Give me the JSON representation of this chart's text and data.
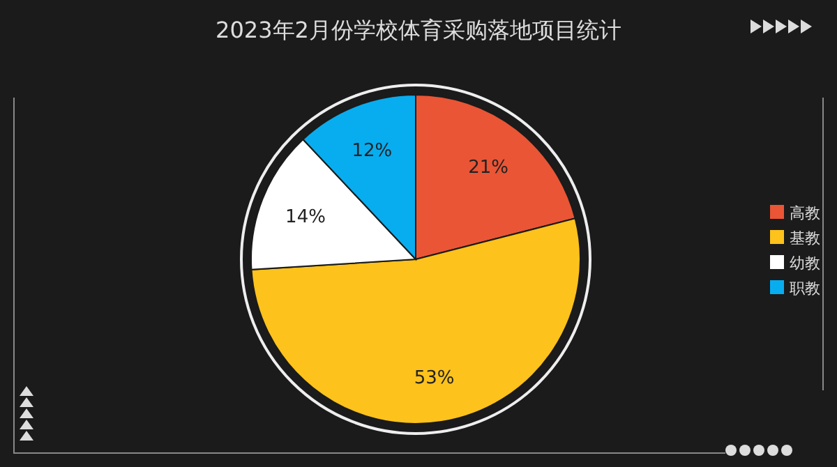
{
  "chart_data": {
    "type": "pie",
    "title": "2023年2月份学校体育采购落地项目统计",
    "categories": [
      "高教",
      "基教",
      "幼教",
      "职教"
    ],
    "values": [
      21,
      53,
      14,
      12
    ],
    "colors": [
      "#ea5535",
      "#fdc21c",
      "#ffffff",
      "#08adef"
    ],
    "value_labels": [
      "21%",
      "53%",
      "14%",
      "12%"
    ],
    "legend": "right"
  }
}
